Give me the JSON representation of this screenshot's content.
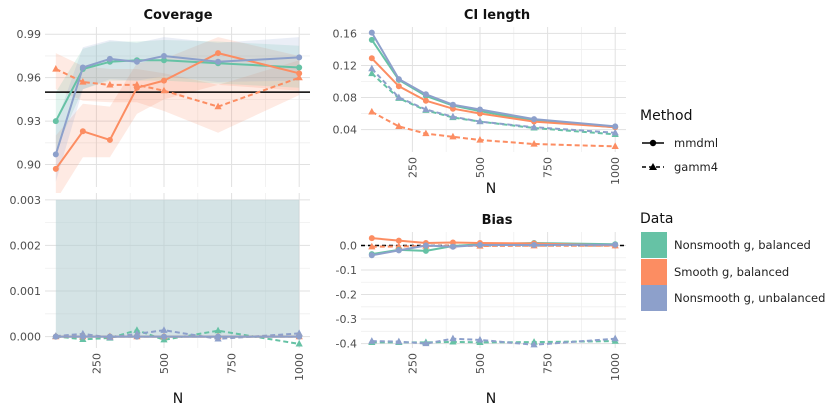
{
  "colors": {
    "nonsmooth_balanced": "#66c2a5",
    "smooth_balanced": "#fc8d62",
    "nonsmooth_unbalanced": "#8da0cb",
    "ribbon_fill": "#b0ccd0",
    "grid": "#e1e1e1",
    "panel_bg": "#ffffff"
  },
  "legend": {
    "method_title": "Method",
    "method_items": [
      {
        "label": "mmdml",
        "style": "solid",
        "marker": "circle"
      },
      {
        "label": "gamm4",
        "style": "dashed",
        "marker": "triangle"
      }
    ],
    "data_title": "Data",
    "data_items": [
      {
        "label": "Nonsmooth g, balanced",
        "color_key": "nonsmooth_balanced"
      },
      {
        "label": "Smooth g, balanced",
        "color_key": "smooth_balanced"
      },
      {
        "label": "Nonsmooth g, unbalanced",
        "color_key": "nonsmooth_unbalanced"
      }
    ]
  },
  "chart_data": [
    {
      "id": "coverage",
      "type": "line",
      "title": "Coverage",
      "xlabel": "N",
      "show_xticks": false,
      "x": [
        100,
        200,
        300,
        400,
        500,
        700,
        1000
      ],
      "xlim": [
        60,
        1040
      ],
      "ylim": [
        0.8845,
        0.995
      ],
      "yticks": [
        0.9,
        0.93,
        0.96,
        0.99
      ],
      "ytick_labels": [
        "0.90",
        "0.93",
        "0.96",
        "0.99"
      ],
      "xticks": [
        250,
        500,
        750,
        1000
      ],
      "hline": {
        "y": 0.95,
        "color": "#000000"
      },
      "ribbons": [
        {
          "series": "Smooth g, balanced",
          "color_key": "smooth_balanced",
          "lo": [
            0.875,
            0.905,
            0.905,
            0.935,
            0.945,
            0.955,
            0.951
          ],
          "hi": [
            0.92,
            0.942,
            0.94,
            0.97,
            0.973,
            0.988,
            0.975
          ]
        },
        {
          "series": "Smooth g, balanced gamm4",
          "color_key": "smooth_balanced",
          "lo": [
            0.952,
            0.944,
            0.943,
            0.943,
            0.937,
            0.922,
            0.948
          ],
          "hi": [
            0.977,
            0.968,
            0.966,
            0.966,
            0.963,
            0.955,
            0.972
          ]
        },
        {
          "series": "Nonsmooth g, balanced",
          "color_key": "nonsmooth_balanced",
          "lo": [
            0.91,
            0.952,
            0.958,
            0.958,
            0.958,
            0.956,
            0.953
          ],
          "hi": [
            0.95,
            0.98,
            0.985,
            0.985,
            0.986,
            0.985,
            0.982
          ]
        },
        {
          "series": "Nonsmooth g, unbalanced",
          "color_key": "nonsmooth_unbalanced",
          "lo": [
            0.888,
            0.952,
            0.959,
            0.958,
            0.961,
            0.957,
            0.958
          ],
          "hi": [
            0.928,
            0.981,
            0.986,
            0.984,
            0.988,
            0.984,
            0.988
          ]
        }
      ],
      "series": [
        {
          "name": "Nonsmooth g, balanced",
          "method": "mmdml",
          "color_key": "nonsmooth_balanced",
          "values": [
            0.93,
            0.966,
            0.971,
            0.972,
            0.972,
            0.97,
            0.967
          ]
        },
        {
          "name": "Smooth g, balanced",
          "method": "mmdml",
          "color_key": "smooth_balanced",
          "values": [
            0.897,
            0.923,
            0.917,
            0.953,
            0.958,
            0.977,
            0.963
          ]
        },
        {
          "name": "Nonsmooth g, unbalanced",
          "method": "mmdml",
          "color_key": "nonsmooth_unbalanced",
          "values": [
            0.907,
            0.967,
            0.973,
            0.971,
            0.975,
            0.971,
            0.974
          ]
        },
        {
          "name": "Smooth g, balanced",
          "method": "gamm4",
          "color_key": "smooth_balanced",
          "values": [
            0.966,
            0.957,
            0.955,
            0.955,
            0.951,
            0.94,
            0.96
          ]
        }
      ]
    },
    {
      "id": "ci_length",
      "type": "line",
      "title": "CI length",
      "xlabel": "N",
      "show_xticks": true,
      "x": [
        100,
        200,
        300,
        400,
        500,
        700,
        1000
      ],
      "xlim": [
        60,
        1040
      ],
      "ylim": [
        0.012,
        0.168
      ],
      "yticks": [
        0.04,
        0.08,
        0.12,
        0.16
      ],
      "ytick_labels": [
        "0.04",
        "0.08",
        "0.12",
        "0.16"
      ],
      "xticks": [
        250,
        500,
        750,
        1000
      ],
      "series": [
        {
          "name": "Nonsmooth g, balanced",
          "method": "mmdml",
          "color_key": "nonsmooth_balanced",
          "values": [
            0.152,
            0.102,
            0.082,
            0.07,
            0.063,
            0.051,
            0.043
          ]
        },
        {
          "name": "Smooth g, balanced",
          "method": "mmdml",
          "color_key": "smooth_balanced",
          "values": [
            0.129,
            0.094,
            0.076,
            0.066,
            0.06,
            0.05,
            0.043
          ]
        },
        {
          "name": "Nonsmooth g, unbalanced",
          "method": "mmdml",
          "color_key": "nonsmooth_unbalanced",
          "values": [
            0.161,
            0.103,
            0.084,
            0.071,
            0.065,
            0.053,
            0.044
          ]
        },
        {
          "name": "Nonsmooth g, balanced",
          "method": "gamm4",
          "color_key": "nonsmooth_balanced",
          "values": [
            0.11,
            0.079,
            0.064,
            0.055,
            0.05,
            0.042,
            0.034
          ]
        },
        {
          "name": "Smooth g, balanced",
          "method": "gamm4",
          "color_key": "smooth_balanced",
          "values": [
            0.062,
            0.044,
            0.035,
            0.031,
            0.027,
            0.022,
            0.019
          ]
        },
        {
          "name": "Nonsmooth g, unbalanced",
          "method": "gamm4",
          "color_key": "nonsmooth_unbalanced",
          "values": [
            0.116,
            0.08,
            0.065,
            0.056,
            0.05,
            0.043,
            0.036
          ]
        }
      ]
    },
    {
      "id": "type1",
      "type": "line",
      "title": "",
      "xlabel": "N",
      "show_xticks": true,
      "x": [
        100,
        200,
        300,
        400,
        500,
        700,
        1000
      ],
      "xlim": [
        60,
        1040
      ],
      "ylim": [
        -0.00025,
        0.00315
      ],
      "yticks": [
        0.0,
        0.001,
        0.002,
        0.003
      ],
      "ytick_labels": [
        "0.000",
        "0.001",
        "0.002",
        "0.003"
      ],
      "xticks": [
        250,
        500,
        750,
        1000
      ],
      "rect": {
        "x0": 100,
        "x1": 1000,
        "y0": 0,
        "y1": 0.003,
        "color_key": "ribbon_fill"
      },
      "series": [
        {
          "name": "Nonsmooth g, balanced",
          "method": "mmdml",
          "color_key": "nonsmooth_balanced",
          "values": [
            0,
            0,
            0,
            0,
            0,
            0,
            0
          ]
        },
        {
          "name": "Smooth g, balanced",
          "method": "mmdml",
          "color_key": "smooth_balanced",
          "values": [
            0,
            0,
            0,
            0,
            0,
            0,
            0
          ]
        },
        {
          "name": "Nonsmooth g, unbalanced",
          "method": "mmdml",
          "color_key": "nonsmooth_unbalanced",
          "values": [
            0,
            0,
            0,
            0,
            0,
            0,
            0
          ]
        },
        {
          "name": "Nonsmooth g, balanced",
          "method": "gamm4",
          "color_key": "nonsmooth_balanced",
          "values": [
            5e-06,
            -6e-05,
            -3e-05,
            0.00014,
            -7e-05,
            0.00013,
            -0.00016
          ]
        },
        {
          "name": "Smooth g, balanced",
          "method": "gamm4",
          "color_key": "smooth_balanced",
          "values": [
            0,
            0,
            0,
            0,
            0,
            0,
            0
          ]
        },
        {
          "name": "Nonsmooth g, unbalanced",
          "method": "gamm4",
          "color_key": "nonsmooth_unbalanced",
          "values": [
            1e-05,
            6e-05,
            -2e-05,
            6e-05,
            0.00014,
            -5e-05,
            7e-05
          ]
        }
      ]
    },
    {
      "id": "bias",
      "type": "line",
      "title": "Bias",
      "xlabel": "N",
      "show_xticks": true,
      "x": [
        100,
        200,
        300,
        400,
        500,
        700,
        1000
      ],
      "xlim": [
        60,
        1040
      ],
      "ylim": [
        -0.418,
        0.055
      ],
      "yticks": [
        0.0,
        -0.1,
        -0.2,
        -0.3,
        -0.4
      ],
      "ytick_labels": [
        "0.0",
        "-0.1",
        "-0.2",
        "-0.3",
        "-0.4"
      ],
      "xticks": [
        250,
        500,
        750,
        1000
      ],
      "hline": {
        "y": 0,
        "color": "#000000",
        "dashed": true
      },
      "series": [
        {
          "name": "Nonsmooth g, balanced",
          "method": "mmdml",
          "color_key": "nonsmooth_balanced",
          "values": [
            -0.035,
            -0.018,
            -0.022,
            -0.002,
            0.005,
            0.01,
            0.005
          ]
        },
        {
          "name": "Smooth g, balanced",
          "method": "mmdml",
          "color_key": "smooth_balanced",
          "values": [
            0.03,
            0.02,
            0.01,
            0.012,
            0.01,
            0.008,
            0.0
          ]
        },
        {
          "name": "Nonsmooth g, unbalanced",
          "method": "mmdml",
          "color_key": "nonsmooth_unbalanced",
          "values": [
            -0.04,
            -0.02,
            0.0,
            -0.005,
            0.002,
            0.002,
            0.003
          ]
        },
        {
          "name": "Nonsmooth g, balanced",
          "method": "gamm4",
          "color_key": "nonsmooth_balanced",
          "values": [
            -0.395,
            -0.395,
            -0.395,
            -0.393,
            -0.395,
            -0.394,
            -0.39
          ]
        },
        {
          "name": "Smooth g, balanced",
          "method": "gamm4",
          "color_key": "smooth_balanced",
          "values": [
            -0.005,
            -0.004,
            -0.002,
            -0.001,
            -0.002,
            -0.001,
            -0.001
          ]
        },
        {
          "name": "Nonsmooth g, unbalanced",
          "method": "gamm4",
          "color_key": "nonsmooth_unbalanced",
          "values": [
            -0.39,
            -0.392,
            -0.4,
            -0.38,
            -0.385,
            -0.405,
            -0.38
          ]
        }
      ]
    }
  ]
}
